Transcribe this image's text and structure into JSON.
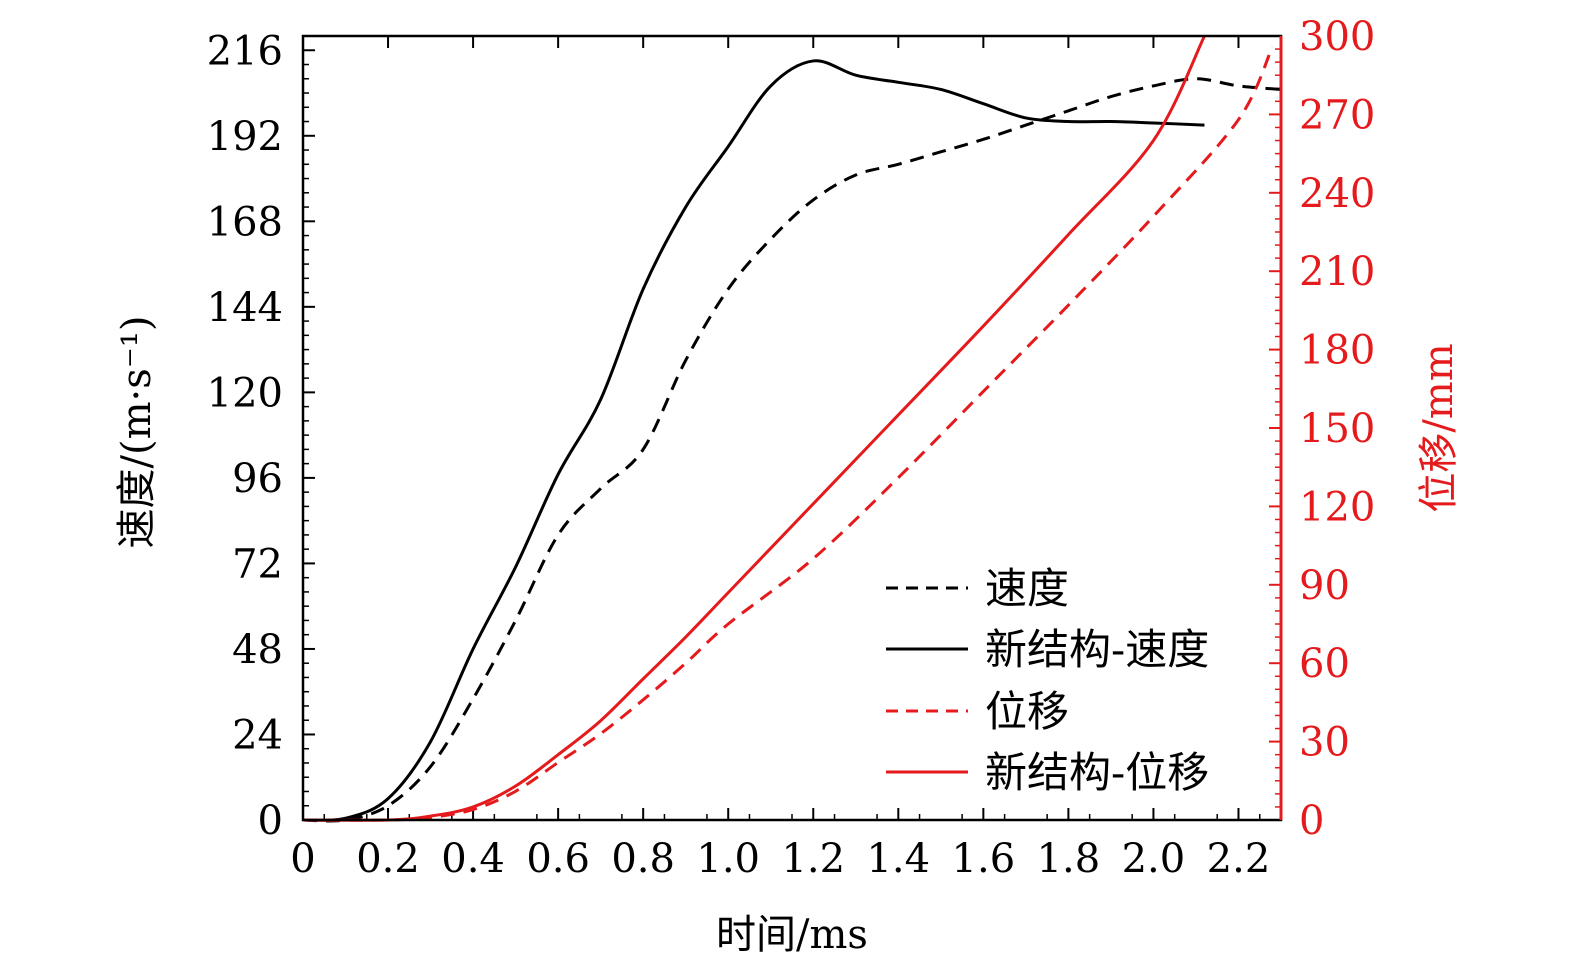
{
  "chart_data": {
    "type": "line",
    "xlabel": "时间/ms",
    "ylabel_left": "速度/(m·s⁻¹)",
    "ylabel_right": "位移/mm",
    "xlim": [
      0,
      2.3
    ],
    "ylim_left": [
      0,
      220
    ],
    "ylim_right": [
      0,
      300
    ],
    "xticks": [
      "0",
      "0.2",
      "0.4",
      "0.6",
      "0.8",
      "1.0",
      "1.2",
      "1.4",
      "1.6",
      "1.8",
      "2.0",
      "2.2"
    ],
    "yticks_left": [
      "0",
      "24",
      "48",
      "72",
      "96",
      "120",
      "144",
      "168",
      "192",
      "216"
    ],
    "yticks_right": [
      "0",
      "30",
      "60",
      "90",
      "120",
      "150",
      "180",
      "210",
      "240",
      "270",
      "300"
    ],
    "legend_position": "bottom-right",
    "colors": {
      "velocity": "#000000",
      "displacement": "#e41a1c"
    },
    "series": [
      {
        "name": "速度",
        "axis": "left",
        "style": "dashed",
        "color": "#000000",
        "x": [
          0,
          0.1,
          0.2,
          0.3,
          0.4,
          0.5,
          0.6,
          0.7,
          0.8,
          0.9,
          1.0,
          1.1,
          1.2,
          1.3,
          1.4,
          1.5,
          1.6,
          1.7,
          1.8,
          1.9,
          2.0,
          2.1,
          2.2,
          2.3
        ],
        "y": [
          0,
          0,
          4,
          15,
          34,
          56,
          80,
          93,
          104,
          129,
          149,
          163,
          174,
          181,
          184,
          187.5,
          191,
          195,
          199,
          203,
          206,
          208,
          206,
          205
        ]
      },
      {
        "name": "新结构-速度",
        "axis": "left",
        "style": "solid",
        "color": "#000000",
        "x": [
          0,
          0.1,
          0.2,
          0.3,
          0.4,
          0.5,
          0.6,
          0.7,
          0.8,
          0.9,
          1.0,
          1.1,
          1.2,
          1.3,
          1.4,
          1.5,
          1.6,
          1.7,
          1.8,
          1.9,
          2.0,
          2.12
        ],
        "y": [
          0,
          0.5,
          6,
          22,
          48,
          71,
          97,
          118,
          149,
          172,
          189,
          206,
          213,
          209,
          207,
          205,
          201,
          197,
          196,
          196,
          195.6,
          195
        ]
      },
      {
        "name": "位移",
        "axis": "right",
        "style": "dashed",
        "color": "#e41a1c",
        "x": [
          0,
          0.2,
          0.3,
          0.4,
          0.5,
          0.6,
          0.7,
          0.8,
          0.9,
          1.0,
          1.2,
          1.4,
          1.6,
          1.8,
          2.0,
          2.2,
          2.28
        ],
        "y": [
          0,
          0,
          1,
          4,
          11,
          22,
          33,
          46,
          60,
          75,
          100,
          131,
          164,
          197,
          231,
          268,
          296
        ]
      },
      {
        "name": "新结构-位移",
        "axis": "right",
        "style": "solid",
        "color": "#e41a1c",
        "x": [
          0,
          0.2,
          0.3,
          0.4,
          0.5,
          0.6,
          0.7,
          0.8,
          0.9,
          1.0,
          1.2,
          1.4,
          1.6,
          1.8,
          2.0,
          2.12
        ],
        "y": [
          0,
          0,
          1.5,
          5,
          13,
          25,
          38,
          54,
          70,
          87,
          121,
          155,
          189,
          224,
          260,
          300
        ]
      }
    ]
  }
}
